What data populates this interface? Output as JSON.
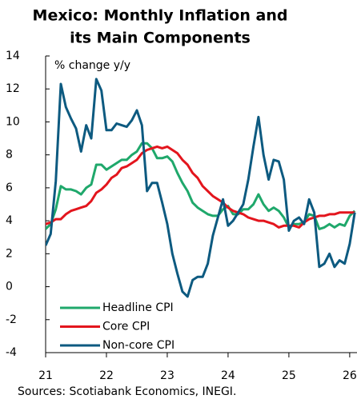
{
  "chart_data": {
    "type": "line",
    "title": [
      "Mexico: Monthly Inflation and",
      "its Main Components"
    ],
    "y_label": "% change y/y",
    "source": "Sources: Scotiabank Economics, INEGI.",
    "x": [
      21,
      21.083,
      21.167,
      21.25,
      21.333,
      21.417,
      21.5,
      21.583,
      21.667,
      21.75,
      21.833,
      21.917,
      22,
      22.083,
      22.167,
      22.25,
      22.333,
      22.417,
      22.5,
      22.583,
      22.667,
      22.75,
      22.833,
      22.917,
      23,
      23.083,
      23.167,
      23.25,
      23.333,
      23.417,
      23.5,
      23.583,
      23.667,
      23.75,
      23.833,
      23.917,
      24,
      24.083,
      24.167,
      24.25,
      24.333,
      24.417,
      24.5,
      24.583,
      24.667,
      24.75,
      24.833,
      24.917,
      25,
      25.083,
      25.167,
      25.25,
      25.333,
      25.417,
      25.5,
      25.583,
      25.667,
      25.75,
      25.833,
      25.917,
      26,
      26.083
    ],
    "series": [
      {
        "name": "Headline CPI",
        "color": "#1fa86b",
        "values": [
          3.5,
          3.8,
          4.7,
          6.1,
          5.9,
          5.9,
          5.8,
          5.6,
          6.0,
          6.2,
          7.4,
          7.4,
          7.1,
          7.3,
          7.5,
          7.7,
          7.7,
          8.0,
          8.2,
          8.7,
          8.7,
          8.4,
          7.8,
          7.8,
          7.9,
          7.6,
          6.9,
          6.3,
          5.8,
          5.1,
          4.8,
          4.6,
          4.4,
          4.3,
          4.3,
          4.7,
          4.9,
          4.4,
          4.4,
          4.7,
          4.7,
          5.0,
          5.6,
          5.0,
          4.6,
          4.8,
          4.6,
          4.2,
          3.6,
          3.8,
          3.8,
          3.9,
          4.4,
          4.3,
          3.5,
          3.6,
          3.8,
          3.6,
          3.8,
          3.7,
          4.3,
          4.6
        ]
      },
      {
        "name": "Core CPI",
        "color": "#e3151d",
        "values": [
          3.8,
          3.9,
          4.1,
          4.1,
          4.4,
          4.6,
          4.7,
          4.8,
          4.9,
          5.2,
          5.7,
          5.9,
          6.2,
          6.6,
          6.8,
          7.2,
          7.3,
          7.5,
          7.7,
          8.1,
          8.3,
          8.4,
          8.5,
          8.4,
          8.5,
          8.3,
          8.1,
          7.7,
          7.4,
          6.9,
          6.6,
          6.1,
          5.8,
          5.5,
          5.3,
          5.1,
          4.8,
          4.6,
          4.5,
          4.4,
          4.2,
          4.1,
          4.0,
          4.0,
          3.9,
          3.8,
          3.6,
          3.7,
          3.7,
          3.7,
          3.6,
          3.9,
          4.1,
          4.2,
          4.3,
          4.3,
          4.4,
          4.4,
          4.5,
          4.5,
          4.5,
          4.5
        ]
      },
      {
        "name": "Non-core CPI",
        "color": "#0d5a80",
        "values": [
          2.5,
          3.2,
          6.4,
          12.3,
          10.9,
          10.2,
          9.6,
          8.2,
          9.8,
          9.0,
          12.6,
          11.9,
          9.5,
          9.5,
          9.9,
          9.8,
          9.7,
          10.1,
          10.7,
          9.8,
          5.8,
          6.3,
          6.3,
          5.1,
          3.8,
          2.0,
          0.8,
          -0.3,
          -0.6,
          0.4,
          0.6,
          0.6,
          1.4,
          3.1,
          4.2,
          5.3,
          3.7,
          4.0,
          4.5,
          5.0,
          6.5,
          8.5,
          10.3,
          8.0,
          6.5,
          7.7,
          7.6,
          6.5,
          3.4,
          4.0,
          4.2,
          3.8,
          5.3,
          4.5,
          1.2,
          1.4,
          2.0,
          1.2,
          1.6,
          1.4,
          2.6,
          4.5
        ]
      }
    ],
    "xlim": [
      21,
      26.12
    ],
    "xticks": [
      21,
      22,
      23,
      24,
      25,
      26
    ],
    "ylim": [
      -4,
      14
    ],
    "yticks": [
      -4,
      -2,
      0,
      2,
      4,
      6,
      8,
      10,
      12,
      14
    ],
    "legend": "lower left"
  }
}
